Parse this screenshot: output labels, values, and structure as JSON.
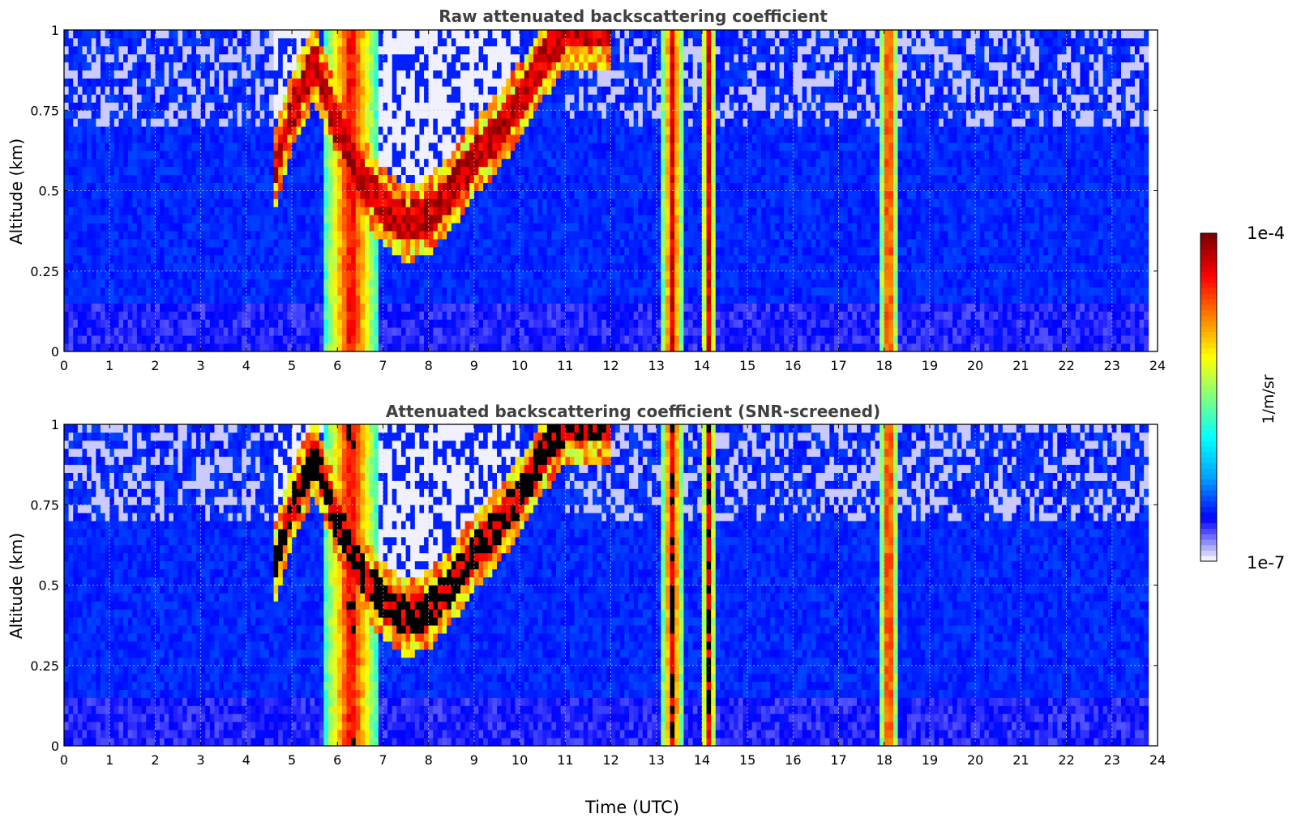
{
  "chart_data": [
    {
      "type": "heatmap",
      "title": "Raw attenuated backscattering coefficient",
      "xlabel": "",
      "ylabel": "Altitude (km)",
      "xlim": [
        0,
        24
      ],
      "ylim": [
        0,
        1
      ],
      "xticks": [
        "0",
        "1",
        "2",
        "3",
        "4",
        "5",
        "6",
        "7",
        "8",
        "9",
        "10",
        "11",
        "12",
        "13",
        "14",
        "15",
        "16",
        "17",
        "18",
        "19",
        "20",
        "21",
        "22",
        "23",
        "24"
      ],
      "yticks": [
        "0",
        "0.25",
        "0.5",
        "0.75",
        "1"
      ],
      "grid": true,
      "features": {
        "aerosol_layer_top_km": [
          [
            4.6,
            0.55
          ],
          [
            5.0,
            0.75
          ],
          [
            5.5,
            0.9
          ],
          [
            6.0,
            0.7
          ],
          [
            6.5,
            0.55
          ],
          [
            7.0,
            0.45
          ],
          [
            7.5,
            0.4
          ],
          [
            8.0,
            0.42
          ],
          [
            8.5,
            0.5
          ],
          [
            9.0,
            0.6
          ],
          [
            9.5,
            0.68
          ],
          [
            10.0,
            0.78
          ],
          [
            10.5,
            0.9
          ],
          [
            11.0,
            1.0
          ],
          [
            12.0,
            1.0
          ]
        ],
        "precipitation_columns_utc": [
          [
            5.7,
            6.9
          ],
          [
            13.1,
            13.6
          ],
          [
            14.0,
            14.3
          ],
          [
            17.9,
            18.3
          ]
        ]
      }
    },
    {
      "type": "heatmap",
      "title": "Attenuated backscattering coefficient (SNR-screened)",
      "xlabel": "Time (UTC)",
      "ylabel": "Altitude (km)",
      "xlim": [
        0,
        24
      ],
      "ylim": [
        0,
        1
      ],
      "xticks": [
        "0",
        "1",
        "2",
        "3",
        "4",
        "5",
        "6",
        "7",
        "8",
        "9",
        "10",
        "11",
        "12",
        "13",
        "14",
        "15",
        "16",
        "17",
        "18",
        "19",
        "20",
        "21",
        "22",
        "23",
        "24"
      ],
      "yticks": [
        "0",
        "0.25",
        "0.5",
        "0.75",
        "1"
      ],
      "grid": true,
      "saturated_color": "#000000"
    }
  ],
  "colorbar": {
    "min_label": "1e-7",
    "max_label": "1e-4",
    "unit": "1/m/sr",
    "scale": "log",
    "colormap": "jet",
    "colors": [
      "#f0f0ff",
      "#0000ff",
      "#00a0ff",
      "#00ffff",
      "#80ff80",
      "#ffff00",
      "#ff8000",
      "#ff0000",
      "#800000"
    ]
  }
}
